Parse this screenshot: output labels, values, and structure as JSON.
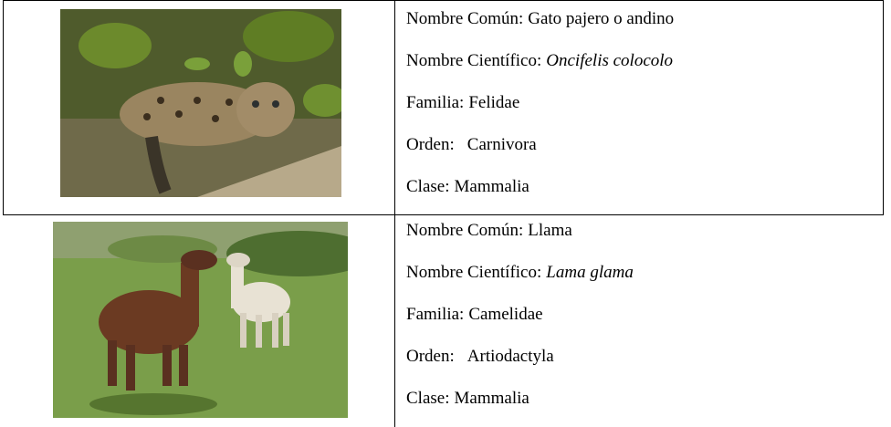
{
  "table": {
    "rows": [
      {
        "common_label": "Nombre Común:",
        "common": "Gato pajero o andino",
        "scientific_label": "Nombre Científico:",
        "scientific": "Oncifelis colocolo",
        "family_label": "Familia:",
        "family": "Felidae",
        "order_label": "Orden:",
        "order": "Carnivora",
        "class_label": "Clase:",
        "class": "Mammalia"
      },
      {
        "common_label": "Nombre Común:",
        "common": "Llama",
        "scientific_label": "Nombre Científico:",
        "scientific": "Lama glama",
        "family_label": "Familia:",
        "family": "Camelidae",
        "order_label": "Orden:",
        "order": "Artiodactyla",
        "class_label": "Clase:",
        "class": "Mammalia"
      }
    ]
  }
}
